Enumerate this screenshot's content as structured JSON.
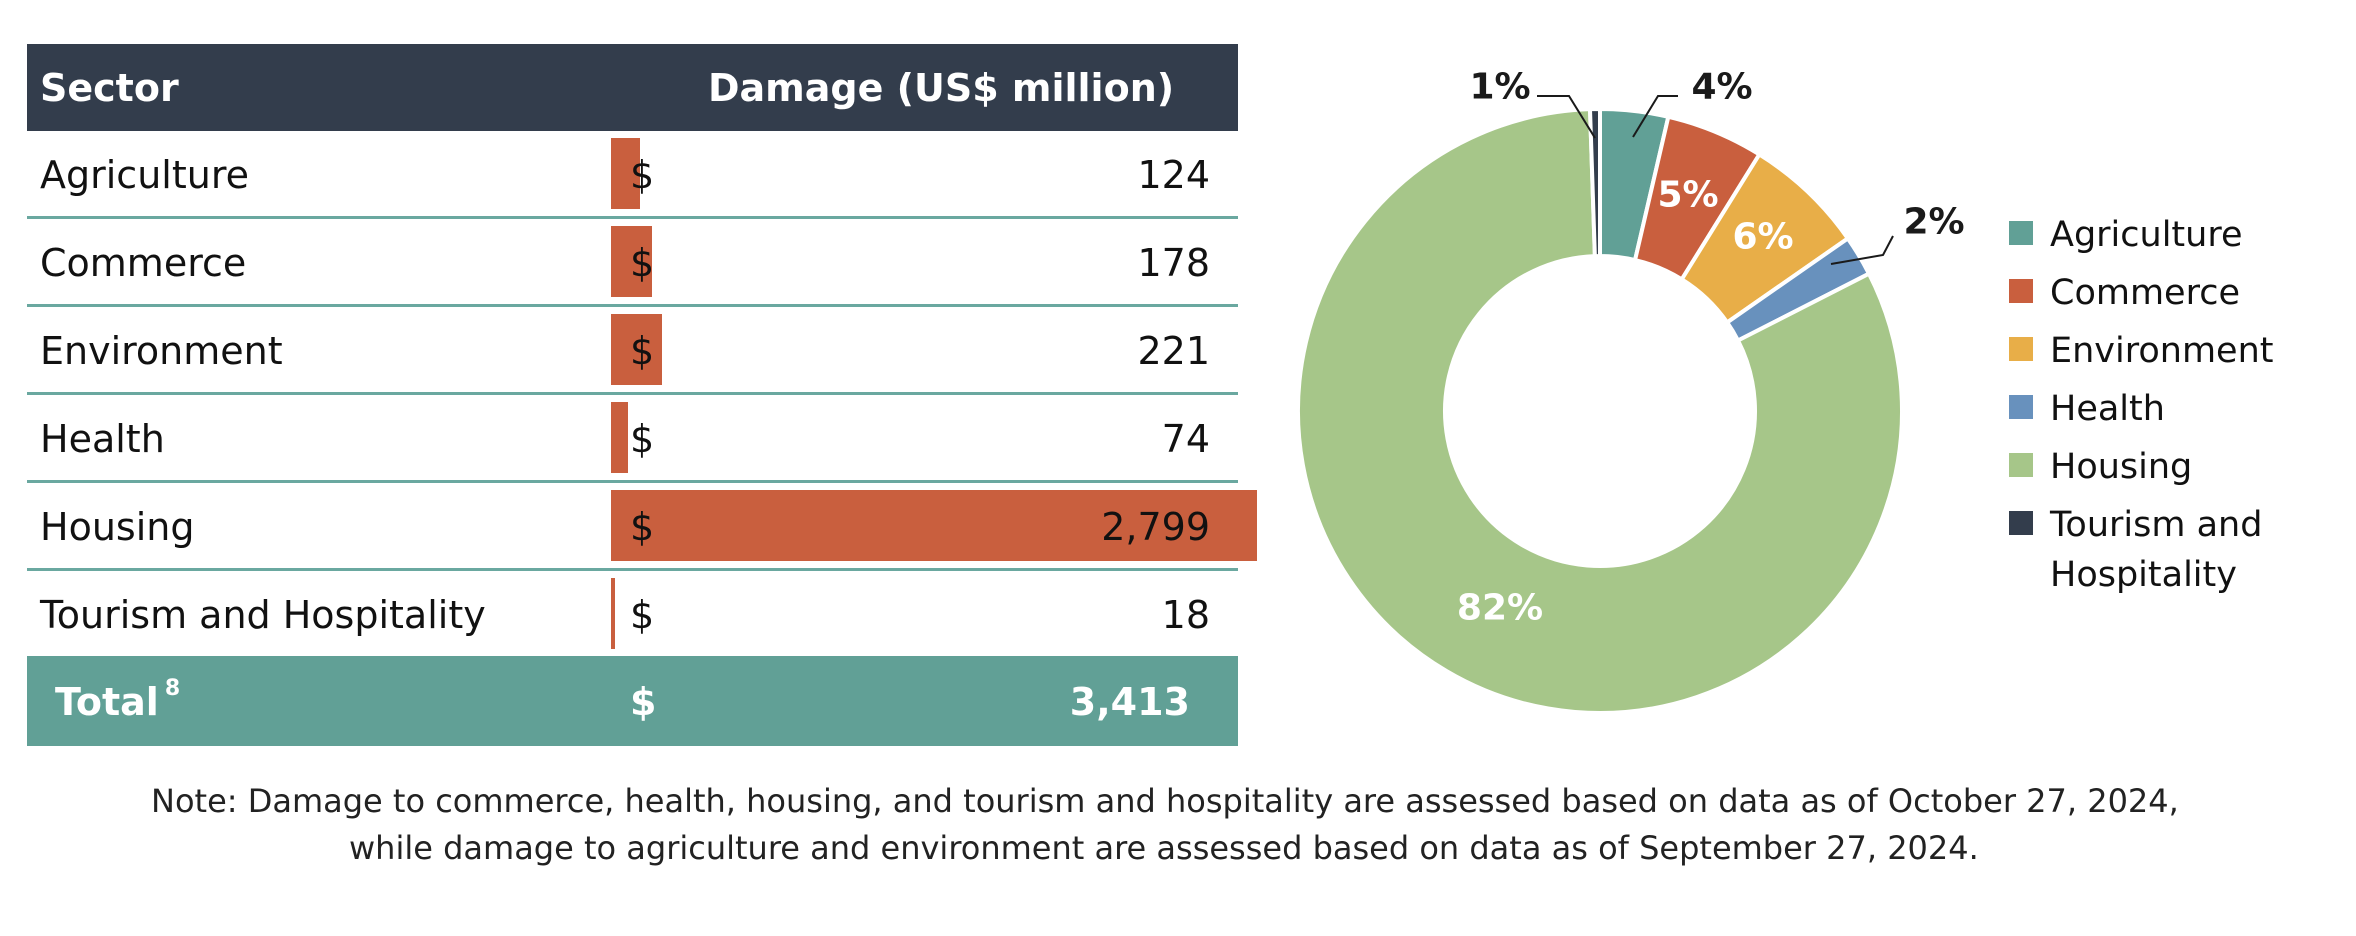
{
  "table": {
    "header": {
      "sector": "Sector",
      "damage": "Damage (US$ million)"
    },
    "currency_symbol": "$",
    "rows": [
      {
        "sector": "Agriculture",
        "value": 124,
        "display": "124"
      },
      {
        "sector": "Commerce",
        "value": 178,
        "display": "178"
      },
      {
        "sector": "Environment",
        "value": 221,
        "display": "221"
      },
      {
        "sector": "Health",
        "value": 74,
        "display": "74"
      },
      {
        "sector": "Housing",
        "value": 2799,
        "display": "2,799"
      },
      {
        "sector": "Tourism and Hospitality",
        "value": 18,
        "display": "18"
      }
    ],
    "total": {
      "label": "Total",
      "footnote": "8",
      "value": 3413,
      "display": "3,413"
    }
  },
  "colors": {
    "header_bg": "#333d4c",
    "bar": "#c95f3e",
    "divider": "#6aa8a0",
    "total_bg": "#61a096"
  },
  "note": {
    "line1": "Note: Damage to commerce, health, housing, and tourism and hospitality are assessed based on data as of October 27, 2024,",
    "line2": "while damage to agriculture and environment are assessed based on data as of September 27, 2024."
  },
  "chart_data": {
    "type": "pie",
    "variant": "donut",
    "title": "",
    "categories": [
      "Agriculture",
      "Commerce",
      "Environment",
      "Health",
      "Housing",
      "Tourism and Hospitality"
    ],
    "values": [
      124,
      178,
      221,
      74,
      2799,
      18
    ],
    "labels": [
      "4%",
      "5%",
      "6%",
      "2%",
      "82%",
      "1%"
    ],
    "colors": [
      "#61a096",
      "#c95f3e",
      "#e8ae48",
      "#6891bd",
      "#a6c689",
      "#333d4c"
    ],
    "legend": {
      "position": "right",
      "entries": [
        "Agriculture",
        "Commerce",
        "Environment",
        "Health",
        "Housing",
        "Tourism and Hospitality"
      ]
    },
    "start_angle": "12 o'clock",
    "direction": "clockwise"
  }
}
